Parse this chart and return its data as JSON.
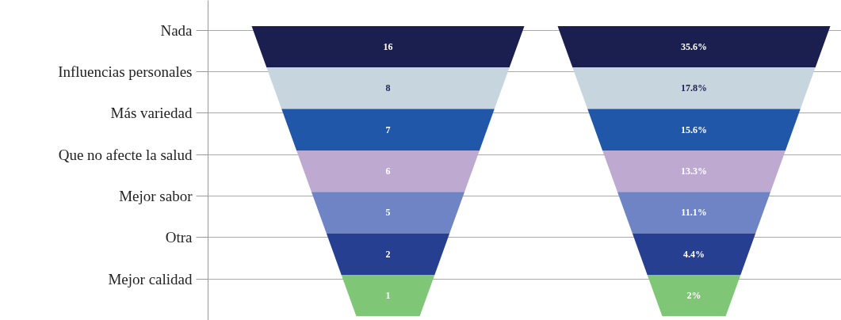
{
  "chart_data": {
    "type": "other",
    "categories": [
      "Nada",
      "Influencias personales",
      "Más variedad",
      "Que no afecte la salud",
      "Mejor sabor",
      "Otra",
      "Mejor calidad"
    ],
    "series": [
      {
        "values": [
          16,
          8,
          7,
          6,
          5,
          2,
          1
        ],
        "value_labels": [
          "16",
          "8",
          "7",
          "6",
          "5",
          "2",
          "1"
        ],
        "colors": [
          "#1b1f4f",
          "#c7d5de",
          "#2057a8",
          "#bea9d0",
          "#6f84c4",
          "#263f91",
          "#7fc677"
        ]
      },
      {
        "values": [
          35.6,
          17.8,
          15.6,
          13.3,
          11.1,
          4.4,
          2
        ],
        "value_labels": [
          "35.6%",
          "17.8%",
          "15.6%",
          "13.3%",
          "11.1%",
          "4.4%",
          "2%"
        ],
        "colors": [
          "#1b1f4f",
          "#c7d5de",
          "#2057a8",
          "#bea9d0",
          "#6f84c4",
          "#263f91",
          "#7fc677"
        ]
      }
    ]
  }
}
